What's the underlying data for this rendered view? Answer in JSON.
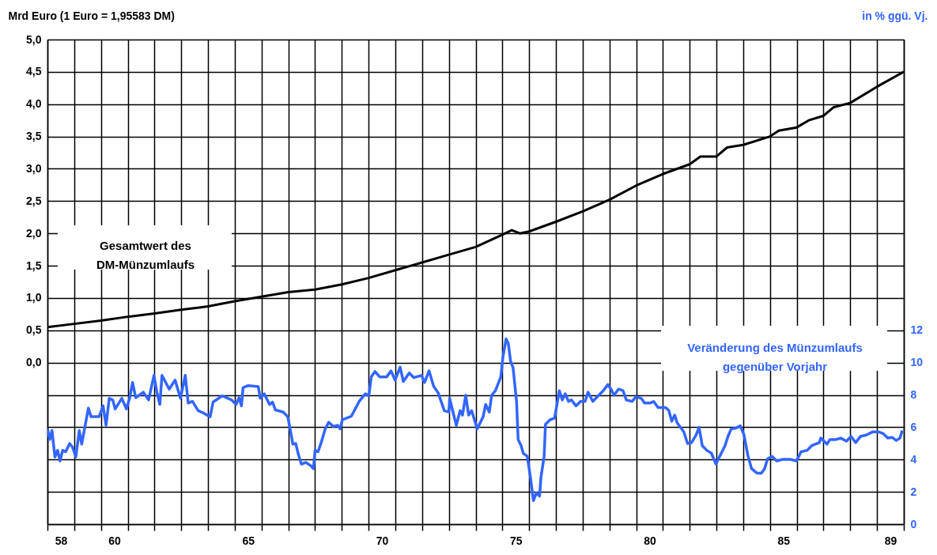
{
  "chart_data": {
    "type": "line",
    "ylabel": "Mrd Euro (1 Euro = 1,95583 DM)",
    "y2label": "in % ggü. Vj.",
    "xlim": [
      57.5,
      89.5
    ],
    "xticks": [
      58,
      60,
      65,
      70,
      75,
      80,
      85,
      89,
      {
        "value": 57.5,
        "label": null
      },
      {
        "value": 58.5,
        "label": null
      },
      {
        "value": 59.5,
        "label": null
      },
      {
        "value": 60.5,
        "label": null
      },
      {
        "value": 61.5,
        "label": null
      },
      {
        "value": 62.5,
        "label": null
      },
      {
        "value": 63.5,
        "label": null
      },
      {
        "value": 64.5,
        "label": null
      },
      {
        "value": 65.5,
        "label": null
      },
      {
        "value": 66.5,
        "label": null
      },
      {
        "value": 67.5,
        "label": null
      },
      {
        "value": 68.5,
        "label": null
      },
      {
        "value": 69.5,
        "label": null
      },
      {
        "value": 70.5,
        "label": null
      },
      {
        "value": 71.5,
        "label": null
      },
      {
        "value": 72.5,
        "label": null
      },
      {
        "value": 73.5,
        "label": null
      },
      {
        "value": 74.5,
        "label": null
      },
      {
        "value": 75.5,
        "label": null
      },
      {
        "value": 76.5,
        "label": null
      },
      {
        "value": 77.5,
        "label": null
      },
      {
        "value": 78.5,
        "label": null
      },
      {
        "value": 79.5,
        "label": null
      },
      {
        "value": 80.5,
        "label": null
      },
      {
        "value": 81.5,
        "label": null
      },
      {
        "value": 82.5,
        "label": null
      },
      {
        "value": 83.5,
        "label": null
      },
      {
        "value": 84.5,
        "label": null
      },
      {
        "value": 85.5,
        "label": null
      },
      {
        "value": 86.5,
        "label": null
      },
      {
        "value": 87.5,
        "label": null
      },
      {
        "value": 88.5,
        "label": null
      },
      {
        "value": 89.5,
        "label": null
      }
    ],
    "ylim": [
      -2.5,
      5
    ],
    "yticks": [
      {
        "value": -2.5,
        "label": null
      },
      {
        "value": -2,
        "label": null
      },
      {
        "value": -1.5,
        "label": null
      },
      {
        "value": -1,
        "label": null
      },
      {
        "value": -0.5,
        "label": null
      },
      {
        "value": 0,
        "label": "0,0"
      },
      {
        "value": 0.5,
        "label": "0,5"
      },
      {
        "value": 1,
        "label": "1,0"
      },
      {
        "value": 1.5,
        "label": "1,5"
      },
      {
        "value": 2,
        "label": "2,0"
      },
      {
        "value": 2.5,
        "label": "2,5"
      },
      {
        "value": 3,
        "label": "3,0"
      },
      {
        "value": 3.5,
        "label": "3,5"
      },
      {
        "value": 4,
        "label": "4,0"
      },
      {
        "value": 4.5,
        "label": "4,5"
      },
      {
        "value": 5,
        "label": "5,0"
      }
    ],
    "y2lim": [
      0,
      30
    ],
    "y2ticks": [
      0,
      2,
      4,
      6,
      8,
      10,
      12
    ],
    "grid": true,
    "series": [
      {
        "name": "Gesamtwert des DM-Münzumlaufs",
        "color": "#000000",
        "x": [
          57.5,
          58.5,
          59.5,
          60.5,
          61.5,
          62.5,
          63.5,
          64.5,
          65.5,
          66.5,
          67.5,
          68.5,
          69.5,
          70.5,
          71.5,
          72.5,
          73.5,
          74.5,
          74.85,
          75.15,
          75.5,
          76.5,
          77.5,
          78.5,
          79.5,
          80.5,
          81.5,
          81.9,
          82.5,
          82.9,
          83.5,
          84.5,
          84.83,
          85.5,
          85.95,
          86.5,
          86.87,
          87.5,
          88.5,
          89.5
        ],
        "values": [
          0.55,
          0.6,
          0.65,
          0.71,
          0.76,
          0.82,
          0.87,
          0.95,
          1.02,
          1.09,
          1.13,
          1.21,
          1.31,
          1.43,
          1.55,
          1.67,
          1.79,
          1.98,
          2.05,
          2,
          2.03,
          2.18,
          2.34,
          2.52,
          2.74,
          2.92,
          3.07,
          3.19,
          3.19,
          3.33,
          3.37,
          3.5,
          3.59,
          3.64,
          3.75,
          3.82,
          3.95,
          4.02,
          4.27,
          4.5
        ]
      },
      {
        "name": "Veränderung des Münzumlaufs gegenüber Vorjahr",
        "color": "#3366ff",
        "axis": "y2",
        "x": [
          57.5,
          57.59,
          57.67,
          57.78,
          57.88,
          57.97,
          58.07,
          58.18,
          58.33,
          58.44,
          58.56,
          58.69,
          58.78,
          59.03,
          59.13,
          59.28,
          59.43,
          59.58,
          59.69,
          59.81,
          59.94,
          60.03,
          60.28,
          60.45,
          60.57,
          60.68,
          60.8,
          61.08,
          61.28,
          61.48,
          61.59,
          61.7,
          61.78,
          62.05,
          62.27,
          62.47,
          62.65,
          62.76,
          62.92,
          63.13,
          63.33,
          63.58,
          63.69,
          64.03,
          64.38,
          64.55,
          64.66,
          64.75,
          64.81,
          65,
          65.38,
          65.45,
          65.6,
          65.8,
          65.91,
          66.02,
          66.31,
          66.48,
          66.59,
          66.67,
          66.78,
          66.88,
          66.99,
          67.16,
          67.33,
          67.44,
          67.5,
          67.61,
          67.73,
          67.88,
          68.01,
          68.18,
          68.35,
          68.44,
          68.52,
          68.86,
          69.15,
          69.38,
          69.51,
          69.6,
          69.74,
          69.92,
          70.17,
          70.34,
          70.49,
          70.68,
          70.8,
          71.02,
          71.19,
          71.48,
          71.59,
          71.76,
          71.93,
          72.1,
          72.33,
          72.5,
          72.53,
          72.67,
          72.78,
          72.92,
          73.01,
          73.13,
          73.24,
          73.35,
          73.56,
          73.78,
          73.875,
          74.01,
          74.1,
          74.24,
          74.35,
          74.44,
          74.52,
          74.64,
          74.72,
          74.81,
          74.9,
          75.03,
          75.09,
          75.2,
          75.28,
          75.43,
          75.55,
          75.66,
          75.77,
          75.89,
          75.94,
          76.06,
          76.11,
          76.28,
          76.45,
          76.63,
          76.74,
          76.85,
          76.97,
          77.08,
          77.25,
          77.42,
          77.59,
          77.7,
          77.88,
          78.1,
          78.27,
          78.44,
          78.56,
          78.67,
          78.84,
          79.01,
          79.13,
          79.35,
          79.49,
          79.69,
          79.81,
          80.03,
          80.15,
          80.32,
          80.6,
          80.72,
          80.83,
          80.94,
          81.03,
          81.28,
          81.42,
          81.57,
          81.74,
          81.85,
          81.97,
          82.14,
          82.31,
          82.48,
          82.65,
          82.82,
          82.93,
          83.05,
          83.22,
          83.39,
          83.53,
          83.67,
          83.81,
          84.01,
          84.18,
          84.3,
          84.41,
          84.58,
          84.75,
          84.98,
          85.26,
          85.49,
          85.66,
          85.89,
          86.06,
          86.34,
          86.4,
          86.63,
          86.74,
          86.97,
          87.14,
          87.36,
          87.53,
          87.7,
          87.88,
          88.1,
          88.33,
          88.56,
          88.73,
          88.9,
          89.07,
          89.22,
          89.36,
          89.44
        ],
        "values": [
          5.9,
          5.24,
          5.8,
          4.16,
          4.57,
          3.91,
          4.57,
          4.48,
          4.99,
          4.76,
          4.16,
          5.8,
          4.95,
          7.18,
          6.65,
          6.65,
          6.65,
          7.32,
          6.12,
          7.79,
          7.69,
          7.13,
          7.79,
          7.13,
          7.79,
          8.77,
          7.83,
          8.17,
          7.69,
          9.21,
          8.17,
          7.41,
          9.21,
          8.36,
          8.92,
          7.79,
          9.21,
          7.5,
          7.6,
          7.03,
          6.88,
          6.65,
          7.56,
          7.94,
          7.69,
          7.41,
          7.83,
          7.32,
          8.45,
          8.58,
          8.51,
          7.79,
          8.07,
          7.41,
          7.56,
          7.07,
          6.94,
          6.65,
          5.71,
          4.95,
          4.99,
          4.29,
          3.72,
          3.82,
          3.63,
          3.44,
          4.57,
          4.48,
          5.05,
          5.9,
          6.31,
          6.05,
          6.12,
          5.9,
          6.46,
          6.69,
          7.6,
          8.07,
          7.94,
          9.11,
          9.45,
          9.11,
          9.11,
          9.49,
          8.92,
          9.72,
          8.83,
          9.36,
          9.07,
          9.21,
          8.77,
          9.49,
          8.54,
          8.13,
          7.03,
          6.94,
          7.79,
          6.84,
          6.12,
          7.03,
          6.75,
          7.98,
          6.75,
          7.03,
          5.9,
          6.65,
          7.41,
          6.94,
          7.98,
          8.26,
          8.73,
          9.11,
          10.34,
          11.47,
          11.19,
          10.06,
          9.68,
          7.6,
          5.24,
          4.86,
          4.39,
          4.2,
          2.87,
          1.46,
          1.93,
          1.74,
          2.87,
          4.2,
          6.18,
          6.46,
          6.56,
          8.26,
          7.69,
          8.07,
          7.6,
          7.69,
          7.32,
          7.6,
          7.6,
          8.17,
          7.6,
          7.98,
          8.26,
          8.64,
          8.36,
          7.98,
          8.36,
          8.26,
          7.69,
          7.6,
          7.88,
          7.79,
          7.5,
          7.5,
          7.6,
          7.22,
          7.22,
          7.03,
          6.37,
          6.75,
          6.28,
          5.71,
          4.99,
          5.05,
          5.52,
          5.99,
          4.86,
          4.57,
          4.39,
          3.72,
          4.29,
          4.86,
          5.43,
          5.9,
          5.94,
          6.09,
          5.52,
          4.29,
          3.44,
          3.16,
          3.16,
          3.44,
          4.05,
          4.2,
          3.91,
          4.01,
          4.01,
          3.91,
          4.48,
          4.57,
          4.86,
          5.05,
          5.33,
          4.95,
          5.24,
          5.24,
          5.33,
          5.14,
          5.43,
          5.05,
          5.43,
          5.52,
          5.71,
          5.71,
          5.61,
          5.33,
          5.37,
          5.18,
          5.33,
          5.8
        ]
      }
    ]
  }
}
